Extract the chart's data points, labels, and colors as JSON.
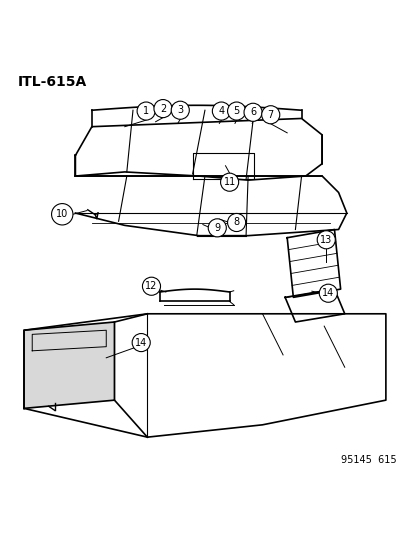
{
  "title": "ITL-615A",
  "footer": "95145  615",
  "background_color": "#ffffff",
  "text_color": "#000000",
  "line_color": "#000000",
  "figsize": [
    4.14,
    5.33
  ],
  "dpi": 100
}
